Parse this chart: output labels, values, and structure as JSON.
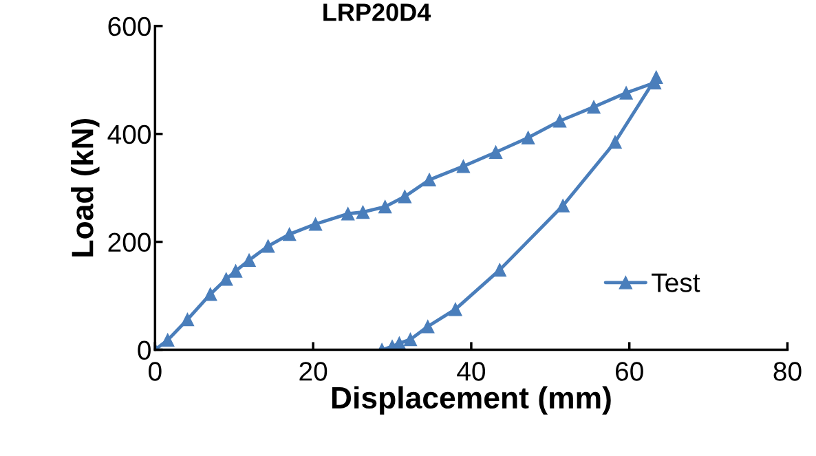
{
  "chart_data": {
    "type": "line",
    "title": "LRP20D4",
    "xlabel": "Displacement (mm)",
    "ylabel": "Load (kN)",
    "x": [
      0,
      1.6,
      4.1,
      7.0,
      9.0,
      10.2,
      11.9,
      14.3,
      17.0,
      20.3,
      24.4,
      26.3,
      29.1,
      31.6,
      34.7,
      39.0,
      43.1,
      47.2,
      51.2,
      55.5,
      59.6,
      63.2,
      63.4,
      58.2,
      51.6,
      43.6,
      38.0,
      34.5,
      32.3,
      30.9,
      30.0,
      28.7
    ],
    "series": [
      {
        "name": "Test",
        "color": "#4a7ebb",
        "values": [
          0,
          18,
          56,
          103,
          131,
          146,
          166,
          192,
          214,
          233,
          252,
          255,
          265,
          284,
          315,
          340,
          366,
          393,
          424,
          450,
          476,
          495,
          505,
          385,
          267,
          148,
          75,
          43,
          19,
          12,
          6,
          0
        ]
      }
    ],
    "xlim": [
      0,
      80
    ],
    "xticks": [
      0,
      20,
      40,
      60,
      80
    ],
    "ylim": [
      0,
      600
    ],
    "yticks": [
      0,
      200,
      400,
      600
    ],
    "grid": false,
    "legend": "right",
    "marker": "triangle",
    "line_style": "solid"
  }
}
